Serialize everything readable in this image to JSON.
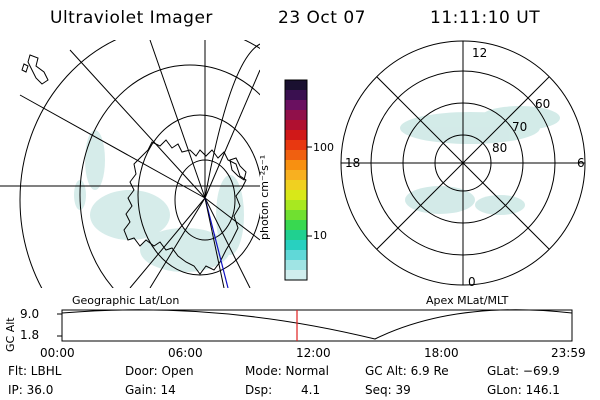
{
  "header": {
    "instrument": "Ultraviolet Imager",
    "date": "23 Oct 07",
    "time": "11:11:10 UT"
  },
  "colorbar": {
    "unit_label": "photon cm⁻²s⁻¹",
    "ticks": [
      "100",
      "10"
    ],
    "colors": [
      "#1a1030",
      "#3a1050",
      "#6a1060",
      "#90104a",
      "#b01030",
      "#d01818",
      "#e83810",
      "#f06010",
      "#f89010",
      "#f8b020",
      "#f0d020",
      "#d8e818",
      "#a8e820",
      "#70e030",
      "#38d850",
      "#20d090",
      "#28d0c0",
      "#60d8d8",
      "#a0e4e4",
      "#d0eeee"
    ]
  },
  "left_map": {
    "projection_label": "Geographic Lat/Lon"
  },
  "right_map": {
    "projection_label": "Apex MLat/MLT",
    "mlt_labels": {
      "top": "12",
      "bottom": "0",
      "left": "18",
      "right": "6"
    },
    "mlat_labels": [
      "60",
      "70",
      "80"
    ]
  },
  "altitude_plot": {
    "ylabel": "GC Alt",
    "yticks": [
      "9.0",
      "1.8"
    ],
    "xticks": [
      "00:00",
      "06:00",
      "12:00",
      "18:00",
      "23:59"
    ],
    "marker_color": "#e02020"
  },
  "status": {
    "filter": "Flt: LBHL",
    "door": "Door: Open",
    "mode": "Mode: Normal",
    "gc_alt": "GC Alt: 6.9 Re",
    "glat": "GLat: −69.9",
    "ip": "IP: 36.0",
    "gain": "Gain: 14",
    "dsp_label": "Dsp:",
    "dsp_value": "4.1",
    "seq": "Seq: 39",
    "glon": "GLon: 146.1"
  }
}
